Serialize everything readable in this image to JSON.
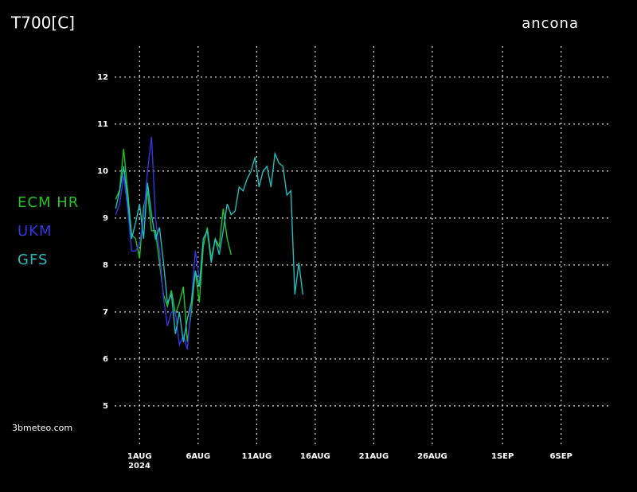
{
  "chart_data": {
    "type": "line",
    "title": "T700[C]",
    "subtitle": "ancona",
    "credit": "3bmeteo.com",
    "year_label": "2024",
    "x": [
      -1.04,
      -0.7,
      -0.36,
      -0.02,
      0.32,
      0.66,
      1.0,
      1.34,
      1.68,
      2.02,
      2.36,
      2.7,
      3.04,
      3.38,
      3.72,
      4.06,
      4.4,
      4.74,
      5.08,
      5.42,
      5.76,
      6.1,
      6.44,
      6.78,
      7.12,
      7.46,
      7.8,
      8.14,
      8.48,
      8.82,
      9.16,
      9.5,
      9.84,
      10.18,
      10.52,
      10.86,
      11.2,
      11.54,
      11.88,
      12.22,
      12.56,
      12.9,
      13.24,
      13.58,
      13.92,
      14.26,
      14.6,
      14.94
    ],
    "series": [
      {
        "name": "ECM HR",
        "color": "#22c422",
        "values": [
          9.4,
          9.6,
          10.47,
          9.58,
          8.64,
          8.56,
          8.14,
          9.24,
          9.58,
          8.73,
          8.73,
          8.05,
          7.37,
          7.12,
          7.46,
          6.95,
          7.2,
          7.54,
          6.36,
          7.0,
          7.88,
          7.2,
          8.39,
          8.8,
          8.14,
          8.56,
          8.39,
          9.2,
          8.56,
          8.22,
          null,
          null,
          null,
          null,
          null,
          null,
          null,
          null,
          null,
          null,
          null,
          null,
          null,
          null,
          null,
          null,
          null,
          null
        ]
      },
      {
        "name": "UKM",
        "color": "#3535e0",
        "values": [
          9.07,
          9.3,
          9.9,
          9.2,
          8.3,
          8.3,
          8.45,
          9.0,
          10.0,
          10.73,
          9.0,
          8.3,
          7.3,
          6.7,
          7.0,
          7.0,
          6.3,
          6.5,
          6.2,
          7.2,
          8.3,
          7.71,
          null,
          null,
          null,
          null,
          null,
          null,
          null,
          null,
          null,
          null,
          null,
          null,
          null,
          null,
          null,
          null,
          null,
          null,
          null,
          null,
          null,
          null,
          null,
          null,
          null,
          null
        ]
      },
      {
        "name": "GFS",
        "color": "#22bcbc",
        "values": [
          9.2,
          9.58,
          10.1,
          9.4,
          8.56,
          8.9,
          9.3,
          8.56,
          9.75,
          9.07,
          8.56,
          8.8,
          8.05,
          7.2,
          7.37,
          6.53,
          7.0,
          6.36,
          6.86,
          7.2,
          7.88,
          7.54,
          8.56,
          8.73,
          8.05,
          8.56,
          8.22,
          8.73,
          9.3,
          9.07,
          9.15,
          9.66,
          9.58,
          9.83,
          10.0,
          10.3,
          9.66,
          10.0,
          10.1,
          9.66,
          10.37,
          10.17,
          10.1,
          9.49,
          9.58,
          7.37,
          8.05,
          7.37
        ]
      }
    ],
    "xlim": [
      -1.4,
      41.1
    ],
    "xticks": [
      {
        "value": 1,
        "label": "1AUG"
      },
      {
        "value": 6,
        "label": "6AUG"
      },
      {
        "value": 11,
        "label": "11AUG"
      },
      {
        "value": 16,
        "label": "16AUG"
      },
      {
        "value": 21,
        "label": "21AUG"
      },
      {
        "value": 26,
        "label": "26AUG"
      },
      {
        "value": 32,
        "label": "1SEP"
      },
      {
        "value": 37,
        "label": "6SEP"
      }
    ],
    "ylim": [
      4.15,
      12.71
    ],
    "yticks": [
      5,
      6,
      7,
      8,
      9,
      10,
      11,
      12
    ],
    "grid": true
  }
}
